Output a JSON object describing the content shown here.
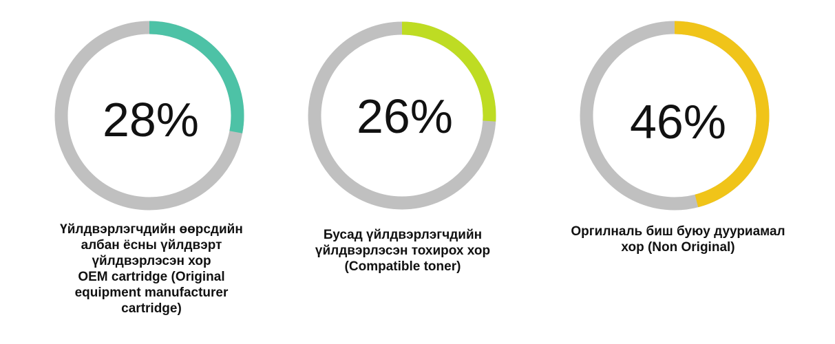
{
  "chart_data": [
    {
      "type": "pie",
      "value": 28,
      "value_text": "28%",
      "color": "#4dc2a6",
      "remainder_color": "#c0c0c0",
      "label_lines": [
        "Үйлдвэрлэгчдийн өөрсдийн",
        "албан ёсны үйлдвэрт",
        "үйлдвэрлэсэн хор",
        "OEM cartridge (Original",
        "equipment manufacturer",
        "cartridge)"
      ]
    },
    {
      "type": "pie",
      "value": 26,
      "value_text": "26%",
      "color": "#bedc23",
      "remainder_color": "#c0c0c0",
      "label_lines": [
        "Бусад үйлдвэрлэгчдийн",
        "үйлдвэрлэсэн тохирох хор",
        "(Compatible toner)"
      ]
    },
    {
      "type": "pie",
      "value": 46,
      "value_text": "46%",
      "color": "#f0c419",
      "remainder_color": "#c0c0c0",
      "label_lines": [
        "Оргилналь биш буюу дууриамал",
        "хор (Non Original)"
      ]
    }
  ]
}
